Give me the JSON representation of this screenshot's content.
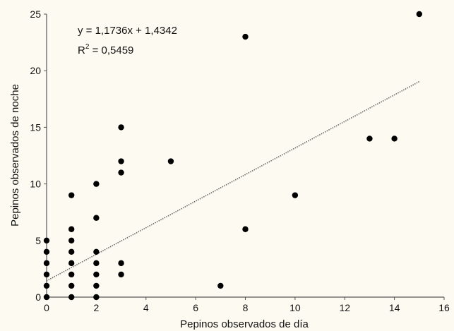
{
  "chart_data": {
    "type": "scatter",
    "title": "",
    "xlabel": "Pepinos observados de día",
    "ylabel": "Pepinos observados de noche",
    "xlim": [
      0,
      16
    ],
    "ylim": [
      0,
      25
    ],
    "x_ticks": [
      "0",
      "2",
      "4",
      "6",
      "8",
      "10",
      "12",
      "14",
      "16"
    ],
    "y_ticks": [
      "0",
      "5",
      "10",
      "15",
      "20",
      "25"
    ],
    "grid": false,
    "points": [
      {
        "x": 0,
        "y": 0
      },
      {
        "x": 0,
        "y": 1
      },
      {
        "x": 0,
        "y": 2
      },
      {
        "x": 0,
        "y": 3
      },
      {
        "x": 0,
        "y": 4
      },
      {
        "x": 0,
        "y": 5
      },
      {
        "x": 1,
        "y": 0
      },
      {
        "x": 1,
        "y": 1
      },
      {
        "x": 1,
        "y": 2
      },
      {
        "x": 1,
        "y": 3
      },
      {
        "x": 1,
        "y": 4
      },
      {
        "x": 1,
        "y": 5
      },
      {
        "x": 1,
        "y": 6
      },
      {
        "x": 1,
        "y": 9
      },
      {
        "x": 2,
        "y": 0
      },
      {
        "x": 2,
        "y": 1
      },
      {
        "x": 2,
        "y": 2
      },
      {
        "x": 2,
        "y": 3
      },
      {
        "x": 2,
        "y": 4
      },
      {
        "x": 2,
        "y": 7
      },
      {
        "x": 2,
        "y": 10
      },
      {
        "x": 3,
        "y": 2
      },
      {
        "x": 3,
        "y": 3
      },
      {
        "x": 3,
        "y": 11
      },
      {
        "x": 3,
        "y": 12
      },
      {
        "x": 3,
        "y": 15
      },
      {
        "x": 5,
        "y": 12
      },
      {
        "x": 7,
        "y": 1
      },
      {
        "x": 8,
        "y": 6
      },
      {
        "x": 8,
        "y": 23
      },
      {
        "x": 10,
        "y": 9
      },
      {
        "x": 13,
        "y": 14
      },
      {
        "x": 14,
        "y": 14
      },
      {
        "x": 15,
        "y": 25
      }
    ],
    "trendline": {
      "slope": 1.1736,
      "intercept": 1.4342,
      "x_range": [
        0,
        15
      ],
      "style": "dotted",
      "equation_label": "y = 1,1736x + 1,4342",
      "r2_prefix": "R",
      "r2_sup": "2",
      "r2_suffix": " = 0,5459"
    },
    "colors": {
      "background": "#fdfbf1",
      "marker": "#000000",
      "trendline": "#666666",
      "axis": "#555555"
    }
  }
}
